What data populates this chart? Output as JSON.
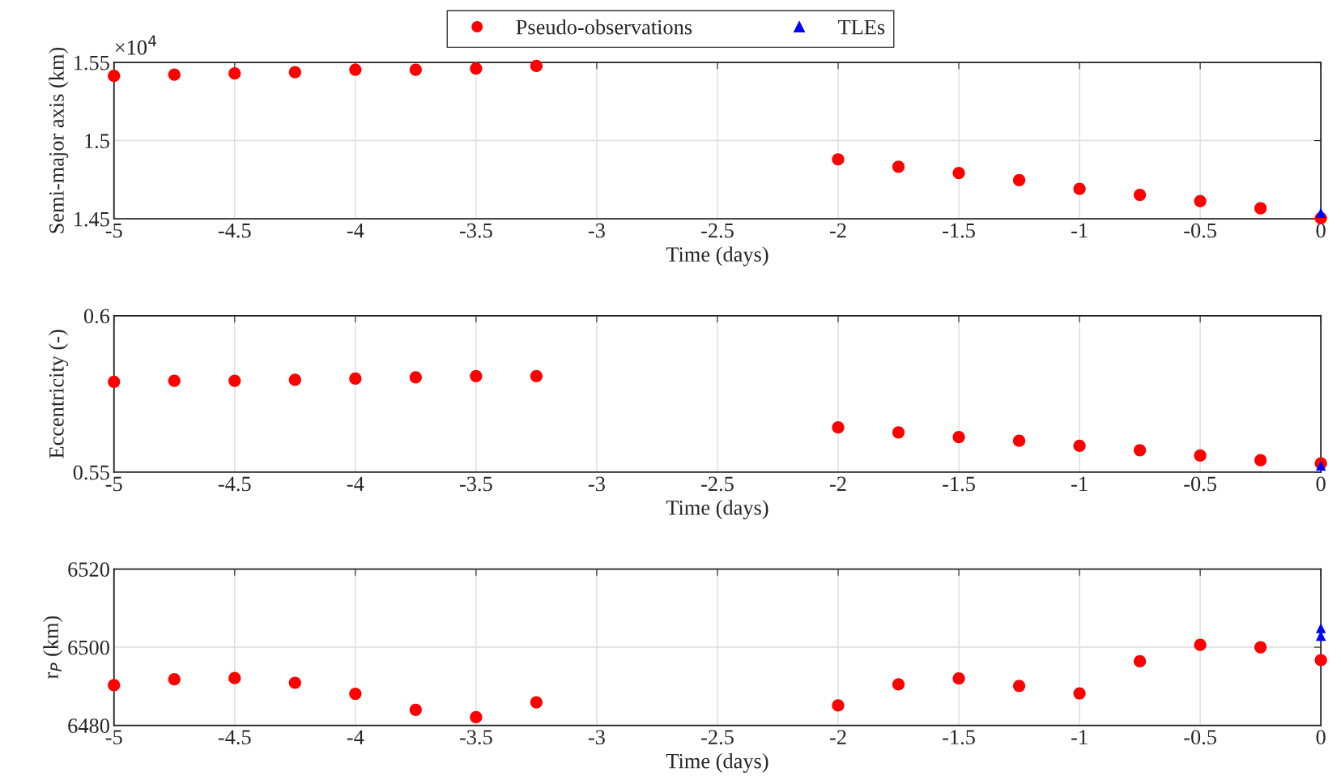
{
  "chart_data": [
    {
      "type": "scatter",
      "xlabel": "Time (days)",
      "ylabel": "Semi-major axis (km)",
      "annotations": [
        "×10$^{4}$"
      ],
      "xlim": [
        -5,
        0
      ],
      "xticks": [
        -5,
        -4.5,
        -4,
        -3.5,
        -3,
        -2.5,
        -2,
        -1.5,
        -1,
        -0.5,
        0
      ],
      "ylim": [
        1.45,
        1.55
      ],
      "yticks": [
        1.45,
        1.5,
        1.55
      ],
      "grid": true,
      "legend": "top",
      "series": [
        {
          "name": "Pseudo-observations",
          "color": "#ff0000",
          "marker": "circle",
          "x": [
            -5,
            -4.75,
            -4.5,
            -4.25,
            -4,
            -3.75,
            -3.5,
            -3.25,
            -2,
            -1.75,
            -1.5,
            -1.25,
            -1,
            -0.75,
            -0.5,
            -0.25,
            0
          ],
          "values": [
            1.5414,
            1.5422,
            1.543,
            1.5437,
            1.5453,
            1.5453,
            1.5461,
            1.5477,
            1.488,
            1.4833,
            1.4793,
            1.4747,
            1.4691,
            1.4653,
            1.4613,
            1.4567,
            1.4504
          ]
        },
        {
          "name": "TLEs",
          "color": "#0000ff",
          "marker": "triangle",
          "x": [
            0
          ],
          "values": [
            1.4538
          ]
        }
      ]
    },
    {
      "type": "scatter",
      "xlabel": "Time (days)",
      "ylabel": "Eccentricity (-)",
      "xlim": [
        -5,
        0
      ],
      "xticks": [
        -5,
        -4.5,
        -4,
        -3.5,
        -3,
        -2.5,
        -2,
        -1.5,
        -1,
        -0.5,
        0
      ],
      "ylim": [
        0.55,
        0.6
      ],
      "yticks": [
        0.55,
        0.6
      ],
      "grid": true,
      "series": [
        {
          "color": "#ff0000",
          "marker": "circle",
          "x": [
            -5,
            -4.75,
            -4.5,
            -4.25,
            -4,
            -3.75,
            -3.5,
            -3.25,
            -2,
            -1.75,
            -1.5,
            -1.25,
            -1,
            -0.75,
            -0.5,
            -0.25,
            0
          ],
          "values": [
            0.5789,
            0.5792,
            0.5792,
            0.5795,
            0.5799,
            0.5803,
            0.5807,
            0.5807,
            0.5643,
            0.5627,
            0.5612,
            0.56,
            0.5584,
            0.557,
            0.5553,
            0.5538,
            0.5528
          ]
        },
        {
          "color": "#0000ff",
          "marker": "triangle",
          "x": [
            0
          ],
          "values": [
            0.5521
          ]
        }
      ]
    },
    {
      "type": "scatter",
      "xlabel": "Time (days)",
      "ylabel": "r$_{P}$ (km)",
      "xlim": [
        -5,
        0
      ],
      "xticks": [
        -5,
        -4.5,
        -4,
        -3.5,
        -3,
        -2.5,
        -2,
        -1.5,
        -1,
        -0.5,
        0
      ],
      "ylim": [
        6480,
        6520
      ],
      "yticks": [
        6480,
        6500,
        6520
      ],
      "grid": true,
      "series": [
        {
          "color": "#ff0000",
          "marker": "circle",
          "x": [
            -5,
            -4.75,
            -4.5,
            -4.25,
            -4,
            -3.75,
            -3.5,
            -3.25,
            -2,
            -1.75,
            -1.5,
            -1.25,
            -1,
            -0.75,
            -0.5,
            -0.25,
            0
          ],
          "values": [
            6490.3,
            6491.8,
            6492.1,
            6490.9,
            6488.1,
            6484,
            6482.1,
            6485.9,
            6485.1,
            6490.5,
            6492,
            6490.1,
            6488.2,
            6496.4,
            6500.6,
            6500,
            6496.7
          ]
        },
        {
          "color": "#0000ff",
          "marker": "triangle",
          "x": [
            0,
            0
          ],
          "values": [
            6504.9,
            6502.9
          ]
        }
      ]
    }
  ]
}
